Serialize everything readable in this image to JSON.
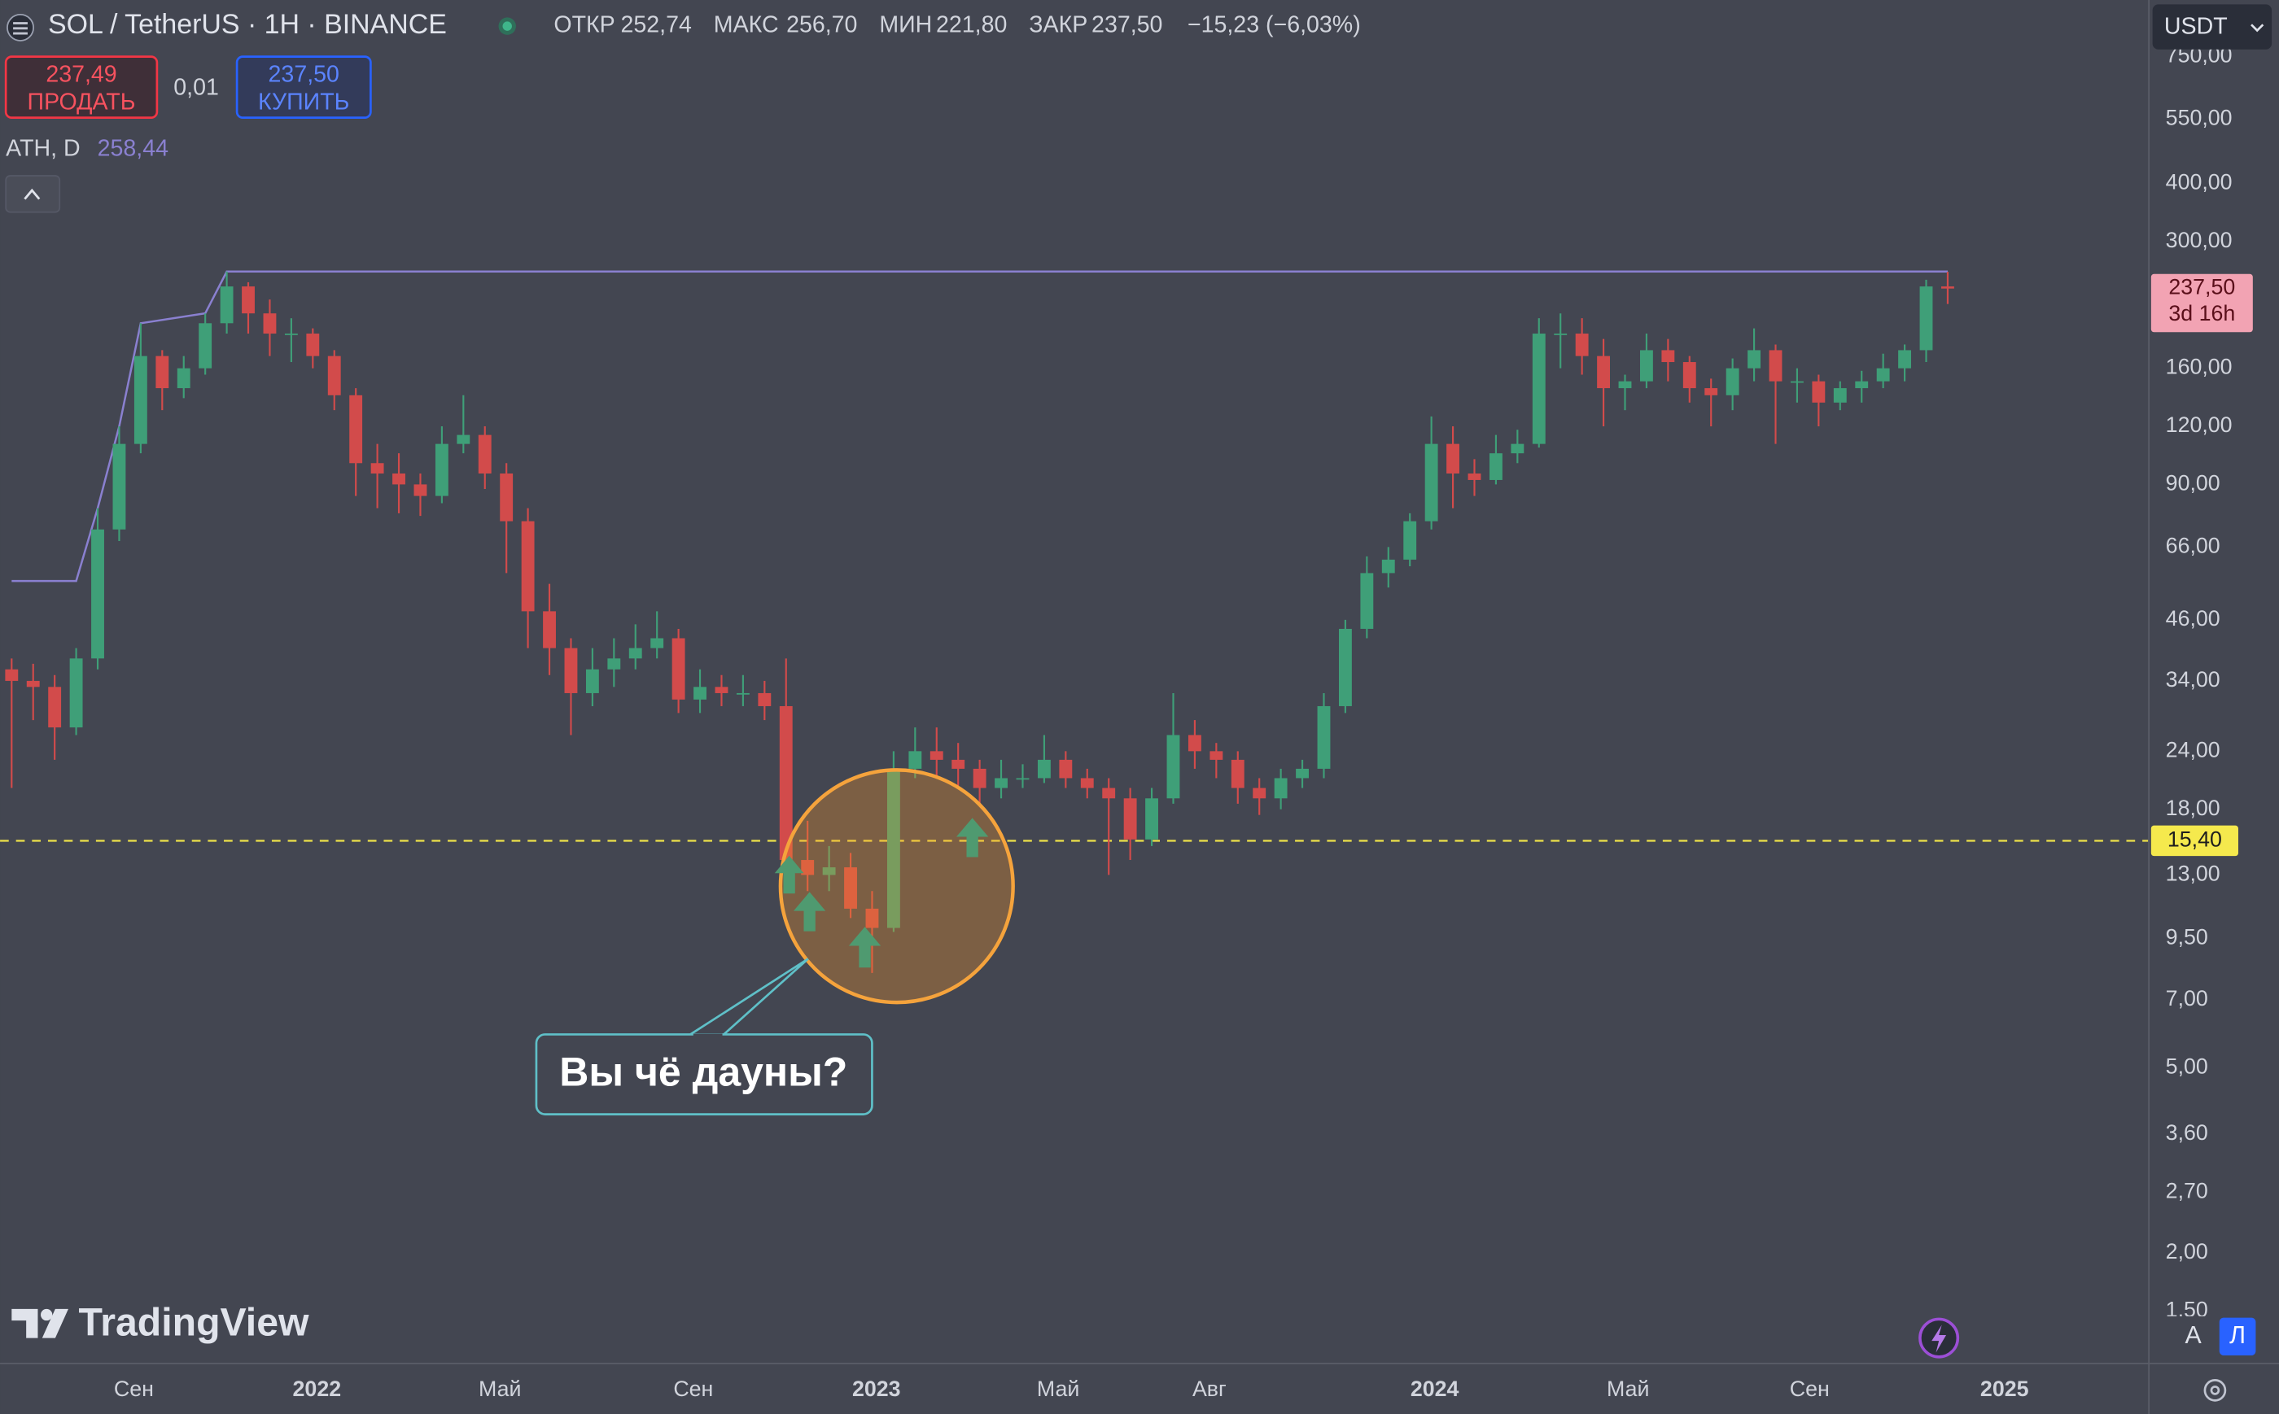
{
  "header": {
    "symbol": "SOL / TetherUS · 1H · BINANCE",
    "open_label": "ОТКР",
    "open": "252,74",
    "high_label": "МАКС",
    "high": "256,70",
    "low_label": "МИН",
    "low": "221,80",
    "close_label": "ЗАКР",
    "close": "237,50",
    "change": "−15,23 (−6,03%)",
    "sell_price": "237,49",
    "sell_label": "ПРОДАТЬ",
    "spread": "0,01",
    "buy_price": "237,50",
    "buy_label": "КУПИТЬ",
    "currency": "USDT",
    "scale_auto": "A",
    "scale_log": "Л",
    "brand": "TradingView"
  },
  "chart_data": {
    "type": "candlestick",
    "up_color": "#3f9f78",
    "down_color": "#d24b4b",
    "log_scale": true,
    "grid": false,
    "xlim": [
      -0.54,
      99.32
    ],
    "xticks": [
      {
        "value": 5.68,
        "label": "Сен"
      },
      {
        "value": 14.19,
        "label": "2022"
      },
      {
        "value": 22.7,
        "label": "Май"
      },
      {
        "value": 31.69,
        "label": "Сен"
      },
      {
        "value": 40.2,
        "label": "2023"
      },
      {
        "value": 48.65,
        "label": "Май"
      },
      {
        "value": 55.68,
        "label": "Авг"
      },
      {
        "value": 66.15,
        "label": "2024"
      },
      {
        "value": 75.14,
        "label": "Май"
      },
      {
        "value": 83.58,
        "label": "Сен"
      },
      {
        "value": 92.64,
        "label": "2025"
      }
    ],
    "ylim": [
      1.16,
      992
    ],
    "yticks": [
      {
        "value": 750,
        "label": "750,00"
      },
      {
        "value": 550,
        "label": "550,00"
      },
      {
        "value": 400,
        "label": "400,00"
      },
      {
        "value": 300,
        "label": "300,00"
      },
      {
        "value": 160,
        "label": "160,00"
      },
      {
        "value": 120,
        "label": "120,00"
      },
      {
        "value": 90,
        "label": "90,00"
      },
      {
        "value": 66,
        "label": "66,00"
      },
      {
        "value": 46,
        "label": "46,00"
      },
      {
        "value": 34,
        "label": "34,00"
      },
      {
        "value": 24,
        "label": "24,00"
      },
      {
        "value": 18,
        "label": "18,00"
      },
      {
        "value": 13,
        "label": "13,00"
      },
      {
        "value": 9.5,
        "label": "9,50"
      },
      {
        "value": 7,
        "label": "7,00"
      },
      {
        "value": 5,
        "label": "5,00"
      },
      {
        "value": 3.6,
        "label": "3,60"
      },
      {
        "value": 2.7,
        "label": "2,70"
      },
      {
        "value": 2,
        "label": "2,00"
      },
      {
        "value": 1.5,
        "label": "1,50"
      }
    ],
    "open": [
      36,
      34,
      33,
      27,
      38,
      72,
      110,
      170,
      145,
      160,
      200,
      240,
      210,
      190,
      190,
      170,
      140,
      100,
      95,
      90,
      85,
      110,
      115,
      95,
      75,
      48,
      40,
      32,
      36,
      38,
      40,
      42,
      31,
      33,
      32,
      32,
      30,
      14,
      13,
      13.5,
      11,
      10,
      22,
      24,
      23,
      22,
      20,
      21,
      21,
      23,
      21,
      20,
      19,
      15.5,
      19,
      26,
      24,
      23,
      20,
      19,
      21,
      22,
      30,
      44,
      58,
      62,
      75,
      110,
      95,
      92,
      105,
      110,
      190,
      190,
      170,
      145,
      150,
      175,
      165,
      145,
      140,
      160,
      175,
      150,
      150,
      135,
      145,
      150,
      160,
      175,
      240
    ],
    "high": [
      38,
      37,
      35,
      40,
      80,
      120,
      200,
      175,
      170,
      210,
      258.44,
      245,
      225,
      205,
      195,
      175,
      145,
      110,
      105,
      95,
      120,
      140,
      120,
      100,
      80,
      55,
      42,
      40,
      42,
      45,
      48,
      44,
      36,
      35,
      35,
      34,
      38,
      17,
      15,
      14.5,
      12,
      24,
      27,
      27,
      25,
      23,
      23,
      22.5,
      26,
      24,
      22,
      21,
      20,
      20,
      32,
      28,
      25,
      24,
      21,
      22,
      23,
      32,
      46,
      63,
      66,
      78,
      126,
      120,
      102,
      115,
      118,
      205,
      210,
      205,
      185,
      155,
      190,
      185,
      170,
      152,
      168,
      195,
      180,
      160,
      155,
      150,
      158,
      172,
      180,
      248,
      258
    ],
    "low": [
      20,
      28,
      23,
      26,
      36,
      68,
      105,
      130,
      138,
      155,
      190,
      190,
      170,
      165,
      160,
      130,
      85,
      80,
      78,
      77,
      82,
      105,
      88,
      58,
      40,
      35,
      26,
      30,
      33,
      36,
      38,
      29,
      29,
      30,
      30,
      28,
      13,
      12,
      12,
      10.5,
      8,
      9.8,
      21,
      21,
      20,
      18.5,
      19,
      20,
      20.5,
      20,
      19,
      13,
      14,
      15,
      18.5,
      22,
      21,
      18.5,
      17.5,
      18,
      20,
      21,
      29,
      42,
      54,
      60,
      72,
      80,
      85,
      90,
      100,
      108,
      160,
      155,
      120,
      130,
      145,
      150,
      135,
      120,
      130,
      150,
      110,
      135,
      120,
      130,
      135,
      145,
      150,
      165,
      220
    ],
    "close": [
      34,
      33,
      27,
      38,
      72,
      110,
      170,
      145,
      160,
      200,
      240,
      210,
      190,
      190,
      170,
      140,
      100,
      95,
      90,
      85,
      110,
      115,
      95,
      75,
      48,
      40,
      32,
      36,
      38,
      40,
      42,
      31,
      33,
      32,
      32,
      30,
      14,
      13,
      13.5,
      11,
      10,
      22,
      24,
      23,
      22,
      20,
      21,
      21,
      23,
      21,
      20,
      19,
      15.5,
      19,
      26,
      24,
      23,
      20,
      19,
      21,
      22,
      30,
      44,
      58,
      62,
      75,
      110,
      95,
      92,
      105,
      110,
      190,
      190,
      170,
      145,
      150,
      175,
      165,
      145,
      140,
      160,
      175,
      150,
      150,
      135,
      145,
      150,
      160,
      175,
      240,
      237.5
    ],
    "ath": {
      "name": "ATH, D",
      "color": "#8a80d0",
      "x": [
        0,
        3,
        4,
        5,
        6,
        9,
        10,
        90
      ],
      "values": [
        55.8,
        55.8,
        80,
        120,
        200,
        210,
        258.44,
        258.44
      ],
      "last_label": "258,44"
    },
    "hline": {
      "value": 15.4,
      "label": "15,40",
      "color": "#e8dc4a"
    },
    "last_price": {
      "value": 237.5,
      "label": "237,50",
      "countdown": "3d 16h"
    },
    "annotation": "Вы чё дауны?"
  }
}
